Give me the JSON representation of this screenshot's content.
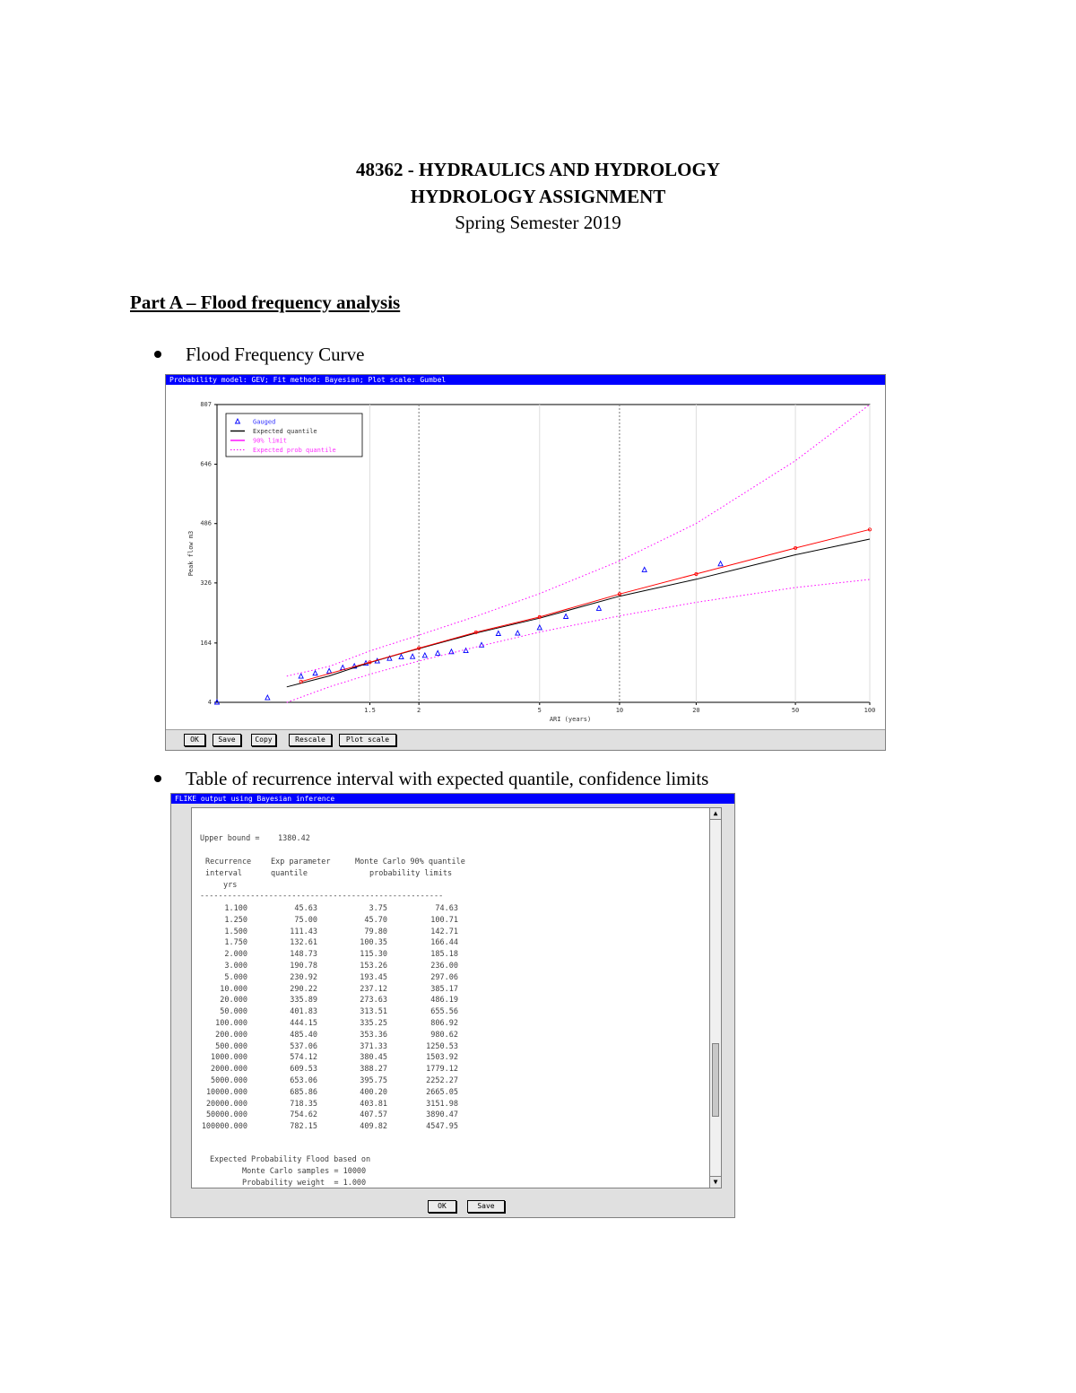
{
  "header": {
    "course": "48362 - HYDRAULICS AND HYDROLOGY",
    "assignment": "HYDROLOGY ASSIGNMENT",
    "semester": "Spring Semester 2019"
  },
  "section_title": "Part A – Flood frequency analysis",
  "bullets": {
    "curve": "Flood Frequency Curve",
    "table": "Table of recurrence interval with expected quantile, confidence limits"
  },
  "plot_window": {
    "title": "Probability model: GEV; Fit method: Bayesian; Plot scale: Gumbel",
    "buttons": [
      "OK",
      "Save",
      "Copy",
      "Rescale",
      "Plot scale"
    ]
  },
  "chart_data": {
    "type": "scatter",
    "xlabel": "ARI (years)",
    "ylabel": "Peak flow m3",
    "x_scale": "gumbel",
    "x_ticks": [
      "1.5",
      "2",
      "5",
      "10",
      "20",
      "50",
      "100"
    ],
    "y_ticks": [
      "4",
      "164",
      "326",
      "486",
      "646",
      "807"
    ],
    "ylim": [
      4,
      807
    ],
    "xlim": [
      1.01,
      100
    ],
    "grid_x_dashed_at": [
      2,
      10
    ],
    "legend": {
      "placement": "top-left",
      "entries": [
        "Gauged",
        "Expected quantile",
        "90% limit",
        "Expected prob quantile"
      ]
    },
    "series": [
      {
        "name": "Gauged",
        "style": "triangle",
        "color": "#0000ff",
        "points": [
          [
            1.01,
            4
          ],
          [
            1.06,
            16
          ],
          [
            1.14,
            74
          ],
          [
            1.19,
            82
          ],
          [
            1.25,
            88
          ],
          [
            1.32,
            97
          ],
          [
            1.39,
            101
          ],
          [
            1.47,
            109
          ],
          [
            1.56,
            115
          ],
          [
            1.67,
            122
          ],
          [
            1.79,
            126
          ],
          [
            1.92,
            127
          ],
          [
            2.08,
            130
          ],
          [
            2.27,
            136
          ],
          [
            2.5,
            140
          ],
          [
            2.78,
            143
          ],
          [
            3.13,
            158
          ],
          [
            3.57,
            189
          ],
          [
            4.17,
            190
          ],
          [
            5.0,
            205
          ],
          [
            6.25,
            235
          ],
          [
            8.33,
            257
          ],
          [
            12.5,
            361
          ],
          [
            25.0,
            377
          ]
        ]
      },
      {
        "name": "Expected quantile",
        "style": "line",
        "color": "#000000",
        "points": [
          [
            1.1,
            45.63
          ],
          [
            1.25,
            75
          ],
          [
            1.5,
            111.43
          ],
          [
            1.75,
            132.61
          ],
          [
            2,
            148.73
          ],
          [
            3,
            190.78
          ],
          [
            5,
            230.92
          ],
          [
            10,
            290.22
          ],
          [
            20,
            335.89
          ],
          [
            50,
            401.83
          ],
          [
            100,
            444.15
          ]
        ]
      },
      {
        "name": "90% limit (lower)",
        "style": "dotted",
        "color": "#ff00ff",
        "points": [
          [
            1.1,
            3.75
          ],
          [
            1.25,
            45.7
          ],
          [
            1.5,
            79.8
          ],
          [
            1.75,
            100.35
          ],
          [
            2,
            115.3
          ],
          [
            3,
            153.26
          ],
          [
            5,
            193.45
          ],
          [
            10,
            237.12
          ],
          [
            20,
            273.63
          ],
          [
            50,
            313.51
          ],
          [
            100,
            335.25
          ]
        ]
      },
      {
        "name": "90% limit (upper)",
        "style": "dotted",
        "color": "#ff00ff",
        "points": [
          [
            1.1,
            74.63
          ],
          [
            1.25,
            100.71
          ],
          [
            1.5,
            142.71
          ],
          [
            1.75,
            166.44
          ],
          [
            2,
            185.18
          ],
          [
            3,
            236
          ],
          [
            5,
            297.06
          ],
          [
            10,
            385.17
          ],
          [
            20,
            486.19
          ],
          [
            50,
            655.56
          ],
          [
            100,
            806.92
          ]
        ]
      },
      {
        "name": "Expected prob quantile",
        "style": "line-dots",
        "color": "#ff0000",
        "points": [
          [
            1.14,
            60
          ],
          [
            1.5,
            112
          ],
          [
            2,
            150
          ],
          [
            3,
            193
          ],
          [
            5,
            234
          ],
          [
            10,
            296
          ],
          [
            20,
            350
          ],
          [
            50,
            420
          ],
          [
            100,
            470
          ]
        ]
      }
    ]
  },
  "table_window": {
    "title": "FLIKE output using Bayesian inference",
    "upper_bound_label": "Upper bound =",
    "upper_bound_value": "1380.42",
    "col_headers": {
      "ri": [
        "Recurrence",
        "interval",
        "yrs"
      ],
      "q": [
        "Exp parameter",
        "quantile"
      ],
      "lim": [
        "Monte Carlo 90% quantile",
        "probability limits"
      ]
    },
    "divider": "-----------------------------------------------------",
    "rows": [
      [
        "1.100",
        "45.63",
        "3.75",
        "74.63"
      ],
      [
        "1.250",
        "75.00",
        "45.70",
        "100.71"
      ],
      [
        "1.500",
        "111.43",
        "79.80",
        "142.71"
      ],
      [
        "1.750",
        "132.61",
        "100.35",
        "166.44"
      ],
      [
        "2.000",
        "148.73",
        "115.30",
        "185.18"
      ],
      [
        "3.000",
        "190.78",
        "153.26",
        "236.00"
      ],
      [
        "5.000",
        "230.92",
        "193.45",
        "297.06"
      ],
      [
        "10.000",
        "290.22",
        "237.12",
        "385.17"
      ],
      [
        "20.000",
        "335.89",
        "273.63",
        "486.19"
      ],
      [
        "50.000",
        "401.83",
        "313.51",
        "655.56"
      ],
      [
        "100.000",
        "444.15",
        "335.25",
        "806.92"
      ],
      [
        "200.000",
        "485.40",
        "353.36",
        "980.62"
      ],
      [
        "500.000",
        "537.06",
        "371.33",
        "1250.53"
      ],
      [
        "1000.000",
        "574.12",
        "380.45",
        "1503.92"
      ],
      [
        "2000.000",
        "609.53",
        "388.27",
        "1779.12"
      ],
      [
        "5000.000",
        "653.06",
        "395.75",
        "2252.27"
      ],
      [
        "10000.000",
        "685.86",
        "400.20",
        "2665.05"
      ],
      [
        "20000.000",
        "718.35",
        "403.81",
        "3151.98"
      ],
      [
        "50000.000",
        "754.62",
        "407.57",
        "3890.47"
      ],
      [
        "100000.000",
        "782.15",
        "409.82",
        "4547.95"
      ]
    ],
    "footer_notes": [
      "Expected Probability Flood based on",
      "Monte Carlo samples = 10000",
      "Probability weight  = 1.000"
    ],
    "buttons": [
      "OK",
      "Save"
    ]
  }
}
